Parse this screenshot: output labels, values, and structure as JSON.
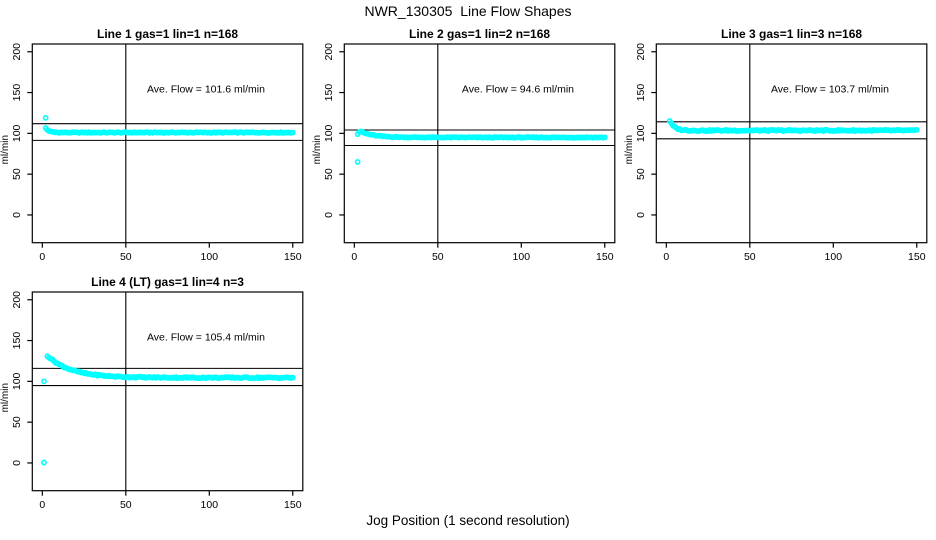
{
  "figure": {
    "title": "NWR_130305  Line Flow Shapes",
    "xlabel": "Jog Position (1 second resolution)",
    "background_color": "#FFFFFF"
  },
  "chart_data": {
    "type": "scatter",
    "title": "NWR_130305  Line Flow Shapes",
    "xlabel": "Jog Position (1 second resolution)",
    "ylabel": "ml/min",
    "xlim": [
      0,
      150
    ],
    "ylim": [
      -25,
      200
    ],
    "x_ticks": [
      0,
      50,
      100,
      150
    ],
    "y_ticks": [
      0,
      50,
      100,
      150,
      200
    ],
    "grid": false,
    "legend": "none",
    "point_color": "#00FFFF",
    "axis_color": "#000000",
    "annotation_anchor": {
      "x": 98,
      "y": 150
    },
    "panels": [
      {
        "name": "line1",
        "title": "Line 1 gas=1 lin=1 n=168",
        "ave_flow_ml_min": 101.6,
        "annotation": "Ave. Flow =  101.6  ml/min",
        "ref_line_upper": 111.8,
        "ref_line_lower": 91.4,
        "vline_x": 50,
        "curve": {
          "x_start": 2,
          "x_end": 150,
          "start_value": 106.5,
          "asymptote": 101,
          "decay_tau": 2.0,
          "noise": 0.5,
          "seed": 1
        },
        "extra_points": [
          [
            2,
            119
          ]
        ]
      },
      {
        "name": "line2",
        "title": "Line 2 gas=1 lin=2 n=168",
        "ave_flow_ml_min": 94.6,
        "annotation": "Ave. Flow =  94.6  ml/min",
        "ref_line_upper": 104.1,
        "ref_line_lower": 85.1,
        "vline_x": 50,
        "curve": {
          "x_start": 4,
          "x_end": 150,
          "start_value": 102,
          "asymptote": 95,
          "decay_tau": 8,
          "noise": 0.5,
          "seed": 2
        },
        "extra_points": [
          [
            2,
            99
          ],
          [
            3,
            101.5
          ],
          [
            2,
            65
          ]
        ]
      },
      {
        "name": "line3",
        "title": "Line 3 gas=1 lin=3 n=168",
        "ave_flow_ml_min": 103.7,
        "annotation": "Ave. Flow =  103.7  ml/min",
        "ref_line_upper": 114.1,
        "ref_line_lower": 93.3,
        "vline_x": 50,
        "curve": {
          "x_start": 2,
          "x_end": 150,
          "start_value": 115.5,
          "asymptote": 103.5,
          "decay_tau": 2.8,
          "noise": 0.8,
          "seed": 3
        },
        "extra_points": []
      },
      {
        "name": "line4",
        "title": "Line 4 (LT) gas=1 lin=4 n=3",
        "ave_flow_ml_min": 105.4,
        "annotation": "Ave. Flow =  105.4  ml/min",
        "ref_line_upper": 115.9,
        "ref_line_lower": 94.9,
        "vline_x": 50,
        "curve": {
          "x_start": 3,
          "x_end": 150,
          "start_value": 131.5,
          "asymptote": 104.5,
          "decay_tau": 14,
          "noise": 0.8,
          "seed": 4
        },
        "extra_points": [
          [
            1,
            100
          ],
          [
            1,
            0.5
          ]
        ]
      }
    ]
  }
}
